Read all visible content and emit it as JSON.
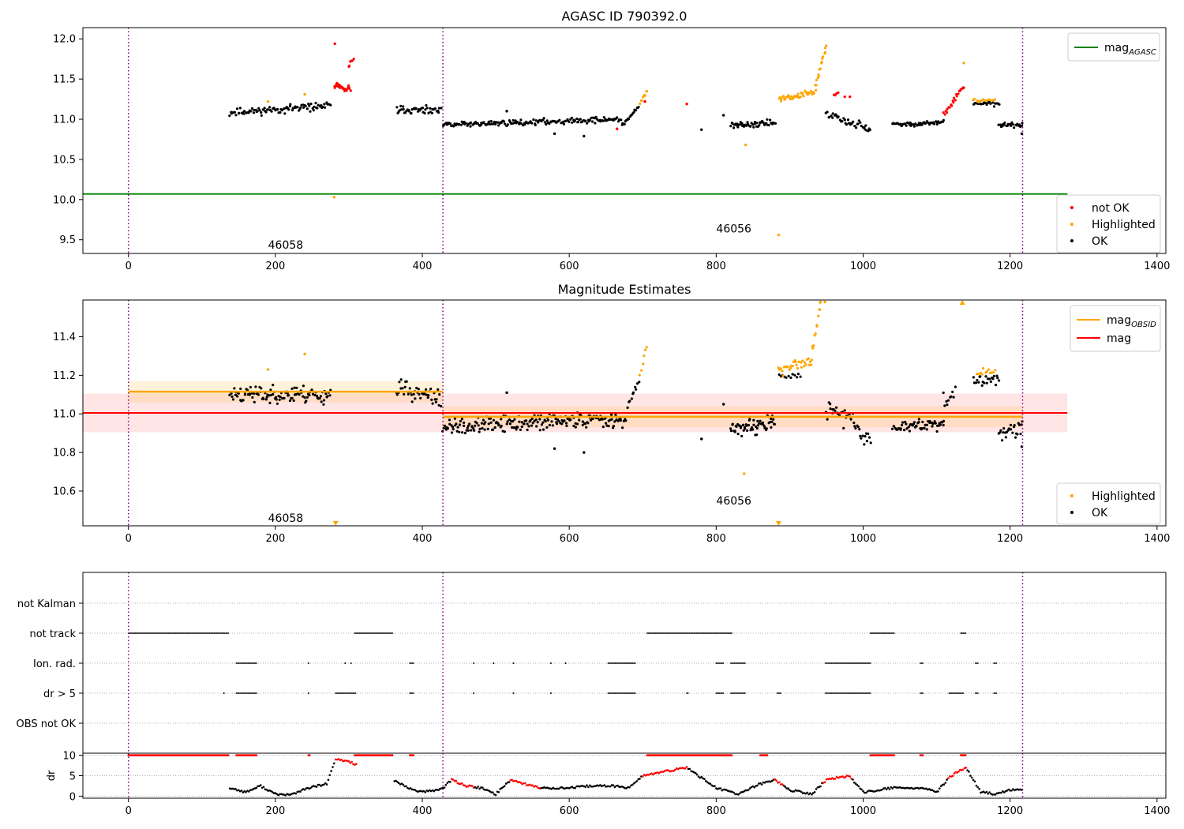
{
  "chart_data": [
    {
      "type": "scatter",
      "title": "AGASC ID 790392.0",
      "xlim": [
        -62,
        1412
      ],
      "ylim": [
        9.33,
        12.14
      ],
      "xticks": [
        0,
        200,
        400,
        600,
        800,
        1000,
        1200,
        1400
      ],
      "yticks": [
        9.5,
        10.0,
        10.5,
        11.0,
        11.5,
        12.0
      ],
      "vlines": [
        0,
        428,
        1217
      ],
      "mag_agasc": {
        "value": 10.07,
        "x_range": [
          -62,
          1278
        ]
      },
      "obsid_labels": [
        {
          "text": "46058",
          "x": 214,
          "y": 9.44
        },
        {
          "text": "46056",
          "x": 824,
          "y": 9.64
        }
      ],
      "legend_lines": [
        {
          "label": "mag",
          "sub": "AGASC",
          "color": "#008000"
        }
      ],
      "legend_points": [
        {
          "label": "not OK",
          "color": "#ff0000"
        },
        {
          "label": "Highlighted",
          "color": "#ffa500"
        },
        {
          "label": "OK",
          "color": "#000000"
        }
      ],
      "segments": [
        {
          "class": "ok",
          "x": [
            138,
            275
          ],
          "y0": 11.08,
          "y1": 11.17,
          "n": 95,
          "noise": 0.04
        },
        {
          "class": "ok",
          "x": [
            365,
            425
          ],
          "y0": 11.12,
          "y1": 11.1,
          "n": 45,
          "noise": 0.04
        },
        {
          "class": "ok",
          "x": [
            428,
            670
          ],
          "y0": 10.93,
          "y1": 11.0,
          "n": 170,
          "noise": 0.03
        },
        {
          "class": "ok",
          "x": [
            672,
            695
          ],
          "y0": 10.93,
          "y1": 11.15,
          "n": 18,
          "noise": 0.02
        },
        {
          "class": "ok",
          "x": [
            820,
            880
          ],
          "y0": 10.92,
          "y1": 10.96,
          "n": 50,
          "noise": 0.035
        },
        {
          "class": "ok",
          "x": [
            950,
            1010
          ],
          "y0": 11.05,
          "y1": 10.88,
          "n": 40,
          "noise": 0.06
        },
        {
          "class": "ok",
          "x": [
            1040,
            1110
          ],
          "y0": 10.93,
          "y1": 10.96,
          "n": 50,
          "noise": 0.025
        },
        {
          "class": "ok",
          "x": [
            1150,
            1185
          ],
          "y0": 11.2,
          "y1": 11.18,
          "n": 20,
          "noise": 0.025
        },
        {
          "class": "ok",
          "x": [
            1185,
            1217
          ],
          "y0": 10.93,
          "y1": 10.93,
          "n": 24,
          "noise": 0.025
        },
        {
          "class": "notok",
          "x": [
            280,
            302
          ],
          "y0": 11.42,
          "y1": 11.36,
          "n": 26,
          "noise": 0.04
        },
        {
          "class": "notok",
          "x": [
            300,
            306
          ],
          "y0": 11.65,
          "y1": 11.76,
          "n": 6,
          "noise": 0.02
        },
        {
          "class": "notok",
          "x": [
            1110,
            1137
          ],
          "y0": 11.05,
          "y1": 11.42,
          "n": 22,
          "noise": 0.03
        },
        {
          "class": "notok",
          "x": [
            960,
            966
          ],
          "y0": 11.3,
          "y1": 11.33,
          "n": 4,
          "noise": 0.01
        },
        {
          "class": "hl",
          "x": [
            885,
            935
          ],
          "y0": 11.25,
          "y1": 11.33,
          "n": 40,
          "noise": 0.03
        },
        {
          "class": "hl",
          "x": [
            935,
            950
          ],
          "y0": 11.4,
          "y1": 11.92,
          "n": 16,
          "noise": 0.02
        },
        {
          "class": "hl",
          "x": [
            1150,
            1180
          ],
          "y0": 11.23,
          "y1": 11.24,
          "n": 14,
          "noise": 0.015
        },
        {
          "class": "hl",
          "x": [
            696,
            706
          ],
          "y0": 11.2,
          "y1": 11.35,
          "n": 8,
          "noise": 0.02
        }
      ],
      "points": [
        {
          "class": "notok",
          "x": 281,
          "y": 11.94
        },
        {
          "class": "notok",
          "x": 760,
          "y": 11.19
        },
        {
          "class": "notok",
          "x": 975,
          "y": 11.28
        },
        {
          "class": "notok",
          "x": 982,
          "y": 11.28
        },
        {
          "class": "notok",
          "x": 665,
          "y": 10.88
        },
        {
          "class": "notok",
          "x": 703,
          "y": 11.22
        },
        {
          "class": "hl",
          "x": 280,
          "y": 10.03
        },
        {
          "class": "hl",
          "x": 885,
          "y": 9.56
        },
        {
          "class": "hl",
          "x": 840,
          "y": 10.68
        },
        {
          "class": "hl",
          "x": 1137,
          "y": 11.7
        },
        {
          "class": "hl",
          "x": 190,
          "y": 11.22
        },
        {
          "class": "hl",
          "x": 240,
          "y": 11.31
        },
        {
          "class": "ok",
          "x": 620,
          "y": 10.79
        },
        {
          "class": "ok",
          "x": 580,
          "y": 10.82
        },
        {
          "class": "ok",
          "x": 780,
          "y": 10.87
        },
        {
          "class": "ok",
          "x": 810,
          "y": 11.05
        },
        {
          "class": "ok",
          "x": 1216,
          "y": 10.82
        },
        {
          "class": "ok",
          "x": 515,
          "y": 11.1
        }
      ]
    },
    {
      "type": "scatter",
      "title": "Magnitude Estimates",
      "xlim": [
        -62,
        1412
      ],
      "ylim": [
        10.42,
        11.59
      ],
      "xticks": [
        0,
        200,
        400,
        600,
        800,
        1000,
        1200,
        1400
      ],
      "yticks": [
        10.6,
        10.8,
        11.0,
        11.2,
        11.4
      ],
      "vlines": [
        0,
        428,
        1217
      ],
      "mag": {
        "value": 11.005,
        "band": [
          10.905,
          11.105
        ],
        "x_range": [
          -62,
          1278
        ]
      },
      "mag_obsid": [
        {
          "value": 11.115,
          "band": [
            11.06,
            11.17
          ],
          "x_range": [
            0,
            428
          ]
        },
        {
          "value": 10.985,
          "band": [
            10.93,
            11.04
          ],
          "x_range": [
            428,
            1217
          ]
        }
      ],
      "obsid_labels": [
        {
          "text": "46058",
          "x": 214,
          "y": 10.46
        },
        {
          "text": "46056",
          "x": 824,
          "y": 10.55
        }
      ],
      "legend_lines": [
        {
          "label": "mag",
          "sub": "OBSID",
          "color": "#ffa500"
        },
        {
          "label": "mag",
          "sub": "",
          "color": "#ff0000"
        }
      ],
      "legend_points": [
        {
          "label": "Highlighted",
          "color": "#ffa500"
        },
        {
          "label": "OK",
          "color": "#000000"
        }
      ],
      "segments": [
        {
          "class": "ok",
          "x": [
            138,
            275
          ],
          "y0": 11.1,
          "y1": 11.1,
          "n": 110,
          "noise": 0.04
        },
        {
          "class": "ok",
          "x": [
            365,
            425
          ],
          "y0": 11.14,
          "y1": 11.07,
          "n": 45,
          "noise": 0.04
        },
        {
          "class": "ok",
          "x": [
            428,
            670
          ],
          "y0": 10.93,
          "y1": 10.98,
          "n": 200,
          "noise": 0.035
        },
        {
          "class": "ok",
          "x": [
            672,
            695
          ],
          "y0": 10.95,
          "y1": 11.18,
          "n": 14,
          "noise": 0.03
        },
        {
          "class": "ok",
          "x": [
            820,
            880
          ],
          "y0": 10.92,
          "y1": 10.95,
          "n": 60,
          "noise": 0.035
        },
        {
          "class": "ok",
          "x": [
            950,
            1010
          ],
          "y0": 11.05,
          "y1": 10.88,
          "n": 40,
          "noise": 0.06
        },
        {
          "class": "ok",
          "x": [
            1040,
            1110
          ],
          "y0": 10.93,
          "y1": 10.95,
          "n": 60,
          "noise": 0.025
        },
        {
          "class": "ok",
          "x": [
            1110,
            1125
          ],
          "y0": 11.05,
          "y1": 11.1,
          "n": 10,
          "noise": 0.04
        },
        {
          "class": "ok",
          "x": [
            1150,
            1185
          ],
          "y0": 11.17,
          "y1": 11.18,
          "n": 22,
          "noise": 0.03
        },
        {
          "class": "ok",
          "x": [
            1185,
            1217
          ],
          "y0": 10.9,
          "y1": 10.93,
          "n": 24,
          "noise": 0.03
        },
        {
          "class": "ok",
          "x": [
            885,
            915
          ],
          "y0": 11.19,
          "y1": 11.2,
          "n": 12,
          "noise": 0.02
        },
        {
          "class": "hl",
          "x": [
            885,
            930
          ],
          "y0": 11.23,
          "y1": 11.27,
          "n": 30,
          "noise": 0.03
        },
        {
          "class": "hl",
          "x": [
            930,
            942
          ],
          "y0": 11.3,
          "y1": 11.58,
          "n": 12,
          "noise": 0.02
        },
        {
          "class": "hl",
          "x": [
            1155,
            1180
          ],
          "y0": 11.22,
          "y1": 11.22,
          "n": 12,
          "noise": 0.02
        },
        {
          "class": "hl",
          "x": [
            696,
            706
          ],
          "y0": 11.2,
          "y1": 11.35,
          "n": 6,
          "noise": 0.02
        }
      ],
      "points": [
        {
          "class": "hl",
          "x": 190,
          "y": 11.23
        },
        {
          "class": "hl",
          "x": 240,
          "y": 11.31
        },
        {
          "class": "hl",
          "x": 838,
          "y": 10.69
        },
        {
          "class": "hl",
          "x": 942,
          "y": 11.58
        },
        {
          "class": "hl",
          "x": 948,
          "y": 11.58
        },
        {
          "class": "ok",
          "x": 620,
          "y": 10.8
        },
        {
          "class": "ok",
          "x": 580,
          "y": 10.82
        },
        {
          "class": "ok",
          "x": 780,
          "y": 10.87
        },
        {
          "class": "ok",
          "x": 810,
          "y": 11.05
        },
        {
          "class": "ok",
          "x": 1216,
          "y": 10.83
        },
        {
          "class": "ok",
          "x": 515,
          "y": 11.11
        }
      ],
      "markers": [
        {
          "shape": "tri-down",
          "x": 282,
          "y": 10.43,
          "color": "#ffa500"
        },
        {
          "shape": "tri-down",
          "x": 885,
          "y": 10.43,
          "color": "#ffa500"
        },
        {
          "shape": "tri-up",
          "x": 1135,
          "y": 11.58,
          "color": "#ffa500"
        }
      ]
    },
    {
      "type": "scatter",
      "title": "",
      "xlim": [
        -62,
        1412
      ],
      "xticks": [
        0,
        200,
        400,
        600,
        800,
        1000,
        1200,
        1400
      ],
      "vlines": [
        0,
        428,
        1217
      ],
      "flag_labels": [
        "not Kalman",
        "not track",
        "Ion. rad.",
        "dr > 5",
        "OBS not OK"
      ],
      "flags": {
        "not track": [
          [
            0,
            137
          ],
          [
            308,
            360
          ],
          [
            706,
            822
          ],
          [
            1010,
            1043
          ],
          [
            1133,
            1140
          ]
        ],
        "Ion. rad.": [
          [
            147,
            175
          ],
          [
            383,
            388
          ],
          [
            653,
            690
          ],
          [
            800,
            810
          ],
          [
            820,
            840
          ],
          [
            949,
            1010
          ],
          [
            1078,
            1082
          ],
          [
            1153,
            1157
          ],
          [
            1178,
            1182
          ]
        ],
        "dr > 5": [
          [
            147,
            175
          ],
          [
            282,
            310
          ],
          [
            383,
            388
          ],
          [
            653,
            690
          ],
          [
            760,
            763
          ],
          [
            800,
            810
          ],
          [
            820,
            840
          ],
          [
            883,
            888
          ],
          [
            949,
            1010
          ],
          [
            1078,
            1082
          ],
          [
            1117,
            1137
          ],
          [
            1153,
            1157
          ],
          [
            1178,
            1182
          ]
        ],
        "isolated_ion": [
          245,
          295,
          303,
          470,
          497,
          524,
          575,
          595
        ],
        "isolated_dr": [
          130,
          245,
          470,
          524,
          575
        ]
      },
      "dr": {
        "ylabel": "dr",
        "yticks": [
          0,
          5,
          10
        ],
        "ylim": [
          -0.5,
          10.5
        ],
        "clip": 10,
        "clipped_x": [
          [
            0,
            137
          ],
          [
            147,
            175
          ],
          [
            245,
            248
          ],
          [
            308,
            360
          ],
          [
            383,
            388
          ],
          [
            706,
            822
          ],
          [
            860,
            870
          ],
          [
            1010,
            1043
          ],
          [
            1078,
            1082
          ],
          [
            1133,
            1140
          ]
        ],
        "curve": [
          [
            138,
            2.0
          ],
          [
            160,
            1.0
          ],
          [
            180,
            2.5
          ],
          [
            200,
            0.5
          ],
          [
            220,
            0.3
          ],
          [
            245,
            2.0
          ],
          [
            270,
            3.0
          ],
          [
            282,
            9.0
          ],
          [
            300,
            8.5
          ],
          [
            365,
            3.5
          ],
          [
            380,
            2.0
          ],
          [
            400,
            1.0
          ],
          [
            420,
            1.5
          ],
          [
            428,
            2.0
          ],
          [
            440,
            4.0
          ],
          [
            460,
            2.5
          ],
          [
            480,
            2.0
          ],
          [
            500,
            0.5
          ],
          [
            520,
            4.0
          ],
          [
            560,
            2.0
          ],
          [
            600,
            2.0
          ],
          [
            630,
            2.5
          ],
          [
            660,
            2.5
          ],
          [
            680,
            2.0
          ],
          [
            700,
            5.0
          ],
          [
            760,
            7.0
          ],
          [
            800,
            2.0
          ],
          [
            830,
            0.5
          ],
          [
            860,
            3.0
          ],
          [
            880,
            4.0
          ],
          [
            900,
            1.5
          ],
          [
            930,
            0.5
          ],
          [
            950,
            4.0
          ],
          [
            980,
            5.0
          ],
          [
            1000,
            1.0
          ],
          [
            1040,
            2.0
          ],
          [
            1080,
            2.0
          ],
          [
            1100,
            1.0
          ],
          [
            1120,
            5.0
          ],
          [
            1140,
            7.0
          ],
          [
            1160,
            1.0
          ],
          [
            1180,
            0.5
          ],
          [
            1200,
            1.5
          ],
          [
            1217,
            1.5
          ]
        ],
        "red_ranges": [
          [
            282,
            310
          ],
          [
            440,
            470
          ],
          [
            520,
            560
          ],
          [
            700,
            760
          ],
          [
            880,
            890
          ],
          [
            945,
            985
          ],
          [
            1115,
            1140
          ]
        ]
      }
    }
  ]
}
